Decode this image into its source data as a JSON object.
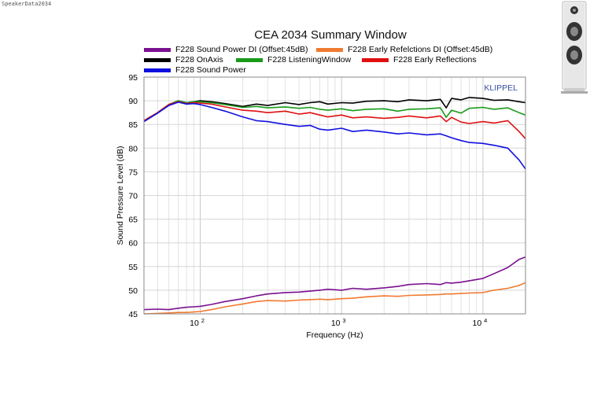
{
  "watermark": "SpeakerData2034",
  "chart_data": {
    "type": "line",
    "title": "CEA 2034 Summary Window",
    "xlabel": "Frequency (Hz)",
    "ylabel": "Sound Pressure Level (dB)",
    "xscale": "log",
    "xlim": [
      40,
      20000
    ],
    "ylim": [
      45,
      95
    ],
    "yticks": [
      45,
      50,
      55,
      60,
      65,
      70,
      75,
      80,
      85,
      90,
      95
    ],
    "xticks": [
      {
        "value": 100,
        "base": "10",
        "exp": "2"
      },
      {
        "value": 1000,
        "base": "10",
        "exp": "3"
      },
      {
        "value": 10000,
        "base": "10",
        "exp": "4"
      }
    ],
    "annotation": "KLIPPEL",
    "grid": true,
    "series": [
      {
        "name": "F228 OnAxis",
        "color": "#000000",
        "points": [
          [
            40,
            85.8
          ],
          [
            50,
            87.5
          ],
          [
            60,
            89.2
          ],
          [
            70,
            90.0
          ],
          [
            80,
            89.6
          ],
          [
            90,
            89.8
          ],
          [
            100,
            90.0
          ],
          [
            120,
            89.8
          ],
          [
            150,
            89.4
          ],
          [
            200,
            88.8
          ],
          [
            250,
            89.3
          ],
          [
            300,
            89.0
          ],
          [
            400,
            89.6
          ],
          [
            500,
            89.2
          ],
          [
            600,
            89.6
          ],
          [
            700,
            89.8
          ],
          [
            800,
            89.3
          ],
          [
            1000,
            89.6
          ],
          [
            1200,
            89.5
          ],
          [
            1500,
            89.9
          ],
          [
            2000,
            90.0
          ],
          [
            2500,
            89.8
          ],
          [
            3000,
            90.2
          ],
          [
            4000,
            90.0
          ],
          [
            5000,
            90.3
          ],
          [
            5500,
            88.5
          ],
          [
            6000,
            90.5
          ],
          [
            7000,
            90.2
          ],
          [
            8000,
            90.7
          ],
          [
            10000,
            90.5
          ],
          [
            12000,
            90.1
          ],
          [
            15000,
            90.2
          ],
          [
            18000,
            89.8
          ],
          [
            20000,
            89.6
          ]
        ]
      },
      {
        "name": "F228 ListeningWindow",
        "color": "#1a9a1a",
        "points": [
          [
            40,
            85.8
          ],
          [
            50,
            87.5
          ],
          [
            60,
            89.2
          ],
          [
            70,
            90.0
          ],
          [
            80,
            89.6
          ],
          [
            90,
            89.8
          ],
          [
            100,
            89.8
          ],
          [
            120,
            89.6
          ],
          [
            150,
            89.2
          ],
          [
            200,
            88.6
          ],
          [
            250,
            88.8
          ],
          [
            300,
            88.5
          ],
          [
            400,
            88.7
          ],
          [
            500,
            88.4
          ],
          [
            600,
            88.6
          ],
          [
            700,
            88.2
          ],
          [
            800,
            88.0
          ],
          [
            1000,
            88.3
          ],
          [
            1200,
            87.9
          ],
          [
            1500,
            88.2
          ],
          [
            2000,
            88.3
          ],
          [
            2500,
            87.8
          ],
          [
            3000,
            88.2
          ],
          [
            4000,
            88.3
          ],
          [
            5000,
            88.5
          ],
          [
            5500,
            86.5
          ],
          [
            6000,
            88.0
          ],
          [
            7000,
            87.4
          ],
          [
            8000,
            88.4
          ],
          [
            10000,
            88.6
          ],
          [
            12000,
            88.2
          ],
          [
            15000,
            88.5
          ],
          [
            18000,
            87.5
          ],
          [
            20000,
            87.0
          ]
        ]
      },
      {
        "name": "F228 Early Reflections",
        "color": "#e01010",
        "points": [
          [
            40,
            85.8
          ],
          [
            50,
            87.5
          ],
          [
            60,
            89.2
          ],
          [
            70,
            89.8
          ],
          [
            80,
            89.4
          ],
          [
            90,
            89.6
          ],
          [
            100,
            89.5
          ],
          [
            120,
            89.3
          ],
          [
            150,
            88.7
          ],
          [
            200,
            88.0
          ],
          [
            250,
            87.8
          ],
          [
            300,
            87.5
          ],
          [
            400,
            87.8
          ],
          [
            500,
            87.2
          ],
          [
            600,
            87.5
          ],
          [
            700,
            87.0
          ],
          [
            800,
            86.6
          ],
          [
            1000,
            87.0
          ],
          [
            1200,
            86.4
          ],
          [
            1500,
            86.6
          ],
          [
            2000,
            86.3
          ],
          [
            2500,
            86.5
          ],
          [
            3000,
            86.8
          ],
          [
            4000,
            86.4
          ],
          [
            5000,
            86.8
          ],
          [
            5500,
            85.6
          ],
          [
            6000,
            86.5
          ],
          [
            7000,
            85.5
          ],
          [
            8000,
            85.2
          ],
          [
            10000,
            85.6
          ],
          [
            12000,
            85.3
          ],
          [
            15000,
            85.8
          ],
          [
            18000,
            83.5
          ],
          [
            20000,
            82.0
          ]
        ]
      },
      {
        "name": "F228 Sound Power",
        "color": "#1010e0",
        "points": [
          [
            40,
            85.6
          ],
          [
            50,
            87.4
          ],
          [
            60,
            89.0
          ],
          [
            70,
            89.7
          ],
          [
            80,
            89.3
          ],
          [
            90,
            89.4
          ],
          [
            100,
            89.2
          ],
          [
            120,
            88.6
          ],
          [
            150,
            87.8
          ],
          [
            200,
            86.6
          ],
          [
            250,
            85.8
          ],
          [
            300,
            85.6
          ],
          [
            400,
            85.0
          ],
          [
            500,
            84.6
          ],
          [
            600,
            84.8
          ],
          [
            700,
            84.0
          ],
          [
            800,
            83.8
          ],
          [
            1000,
            84.2
          ],
          [
            1200,
            83.5
          ],
          [
            1500,
            83.8
          ],
          [
            2000,
            83.4
          ],
          [
            2500,
            83.0
          ],
          [
            3000,
            83.2
          ],
          [
            4000,
            82.8
          ],
          [
            5000,
            83.0
          ],
          [
            5500,
            82.6
          ],
          [
            6000,
            82.2
          ],
          [
            7000,
            81.6
          ],
          [
            8000,
            81.2
          ],
          [
            10000,
            81.0
          ],
          [
            12000,
            80.6
          ],
          [
            15000,
            80.0
          ],
          [
            18000,
            77.5
          ],
          [
            20000,
            75.6
          ]
        ]
      },
      {
        "name": "F228 Sound Power DI (Offset:45dB)",
        "color": "#7a1090",
        "points": [
          [
            40,
            45.9
          ],
          [
            50,
            46.0
          ],
          [
            60,
            45.9
          ],
          [
            70,
            46.2
          ],
          [
            80,
            46.4
          ],
          [
            90,
            46.5
          ],
          [
            100,
            46.6
          ],
          [
            120,
            47.0
          ],
          [
            150,
            47.6
          ],
          [
            200,
            48.2
          ],
          [
            250,
            48.8
          ],
          [
            300,
            49.2
          ],
          [
            400,
            49.5
          ],
          [
            500,
            49.6
          ],
          [
            600,
            49.8
          ],
          [
            700,
            50.0
          ],
          [
            800,
            50.2
          ],
          [
            1000,
            50.0
          ],
          [
            1200,
            50.4
          ],
          [
            1500,
            50.2
          ],
          [
            2000,
            50.5
          ],
          [
            2500,
            50.8
          ],
          [
            3000,
            51.2
          ],
          [
            4000,
            51.4
          ],
          [
            5000,
            51.2
          ],
          [
            5500,
            51.6
          ],
          [
            6000,
            51.5
          ],
          [
            7000,
            51.7
          ],
          [
            8000,
            52.0
          ],
          [
            10000,
            52.5
          ],
          [
            12000,
            53.5
          ],
          [
            15000,
            54.8
          ],
          [
            18000,
            56.5
          ],
          [
            20000,
            57.0
          ]
        ]
      },
      {
        "name": "F228 Early Refelctions DI (Offset:45dB)",
        "color": "#f07a30",
        "points": [
          [
            40,
            45.0
          ],
          [
            50,
            45.1
          ],
          [
            60,
            45.2
          ],
          [
            70,
            45.3
          ],
          [
            80,
            45.3
          ],
          [
            90,
            45.4
          ],
          [
            100,
            45.5
          ],
          [
            120,
            45.9
          ],
          [
            150,
            46.5
          ],
          [
            200,
            47.1
          ],
          [
            250,
            47.6
          ],
          [
            300,
            47.8
          ],
          [
            400,
            47.7
          ],
          [
            500,
            47.9
          ],
          [
            600,
            48.0
          ],
          [
            700,
            48.1
          ],
          [
            800,
            48.0
          ],
          [
            1000,
            48.2
          ],
          [
            1200,
            48.3
          ],
          [
            1500,
            48.6
          ],
          [
            2000,
            48.8
          ],
          [
            2500,
            48.7
          ],
          [
            3000,
            48.9
          ],
          [
            4000,
            49.0
          ],
          [
            5000,
            49.1
          ],
          [
            5500,
            49.2
          ],
          [
            6000,
            49.2
          ],
          [
            7000,
            49.3
          ],
          [
            8000,
            49.4
          ],
          [
            10000,
            49.5
          ],
          [
            12000,
            50.0
          ],
          [
            15000,
            50.4
          ],
          [
            18000,
            51.0
          ],
          [
            20000,
            51.6
          ]
        ]
      }
    ]
  },
  "legend_order": [
    4,
    5,
    0,
    1,
    2,
    3
  ]
}
